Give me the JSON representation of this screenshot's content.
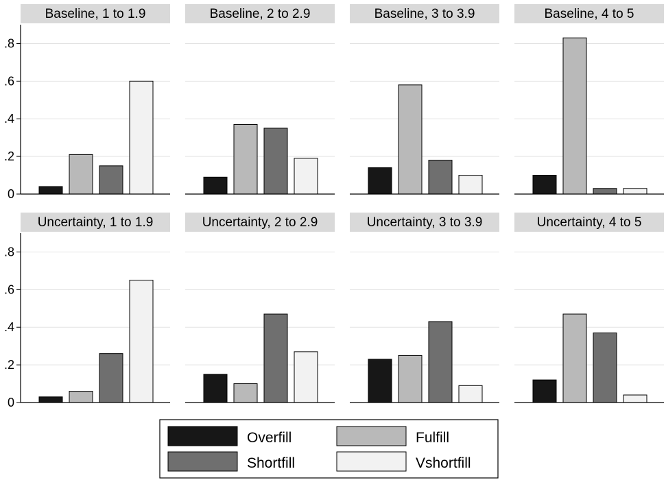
{
  "chart_data": {
    "type": "bar",
    "ylim": [
      0,
      0.9
    ],
    "ytick_labels": [
      ".8",
      ".6",
      ".4",
      ".2",
      "0"
    ],
    "grid": true,
    "legend_position": "bottom-center",
    "colors": {
      "Overfill": "#171717",
      "Fulfill": "#b9b9b9",
      "Shortfill": "#6f6f6f",
      "Vshortfill": "#f2f2f2"
    },
    "series_names": [
      "Overfill",
      "Fulfill",
      "Shortfill",
      "Vshortfill"
    ],
    "panels": [
      {
        "title": "Baseline, 1 to 1.9",
        "values": [
          0.04,
          0.21,
          0.15,
          0.6
        ]
      },
      {
        "title": "Baseline, 2 to 2.9",
        "values": [
          0.09,
          0.37,
          0.35,
          0.19
        ]
      },
      {
        "title": "Baseline, 3 to 3.9",
        "values": [
          0.14,
          0.58,
          0.18,
          0.1
        ]
      },
      {
        "title": "Baseline, 4 to 5",
        "values": [
          0.1,
          0.83,
          0.03,
          0.03
        ]
      },
      {
        "title": "Uncertainty, 1 to 1.9",
        "values": [
          0.03,
          0.06,
          0.26,
          0.65
        ]
      },
      {
        "title": "Uncertainty, 2 to 2.9",
        "values": [
          0.15,
          0.1,
          0.47,
          0.27
        ]
      },
      {
        "title": "Uncertainty, 3 to 3.9",
        "values": [
          0.23,
          0.25,
          0.43,
          0.09
        ]
      },
      {
        "title": "Uncertainty, 4 to 5",
        "values": [
          0.12,
          0.47,
          0.37,
          0.04
        ]
      }
    ]
  }
}
